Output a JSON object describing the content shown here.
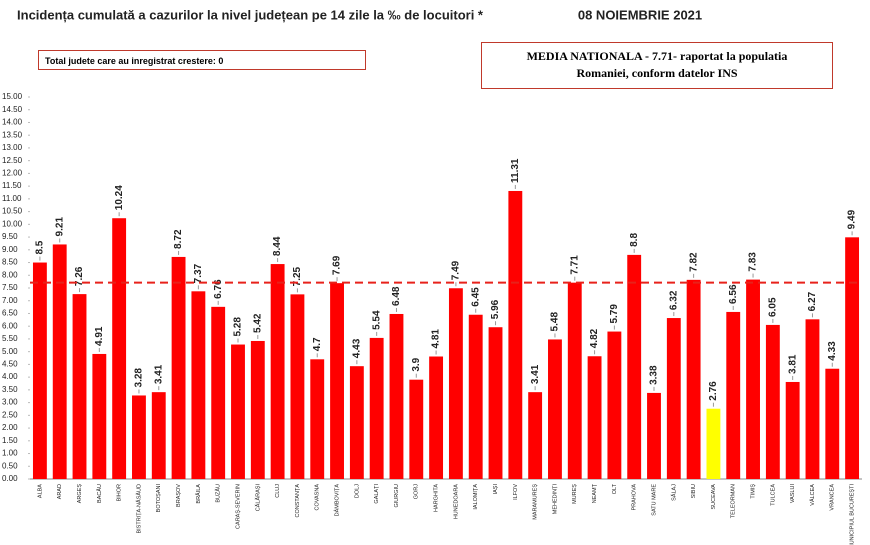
{
  "chart_data": {
    "type": "bar",
    "title": "Incidența cumulată a cazurilor la nivel județean pe 14 zile la ‰ de locuitori *",
    "date": "08 NOIEMBRIE 2021",
    "note_box": "Total judete care au inregistrat crestere: 0",
    "reference_box": "MEDIA NATIONALA - 7.71-  raportat la populatia Romaniei, conform datelor INS",
    "reference_line": 7.71,
    "reference_color": "#e8221b",
    "categories": [
      "ALBA",
      "ARAD",
      "ARGEȘ",
      "BACĂU",
      "BIHOR",
      "BISTRIȚA-NĂSĂUD",
      "BOTOȘANI",
      "BRAȘOV",
      "BRĂILA",
      "BUZĂU",
      "CARAȘ-SEVERIN",
      "CĂLĂRAȘI",
      "CLUJ",
      "CONSTANȚA",
      "COVASNA",
      "DÂMBOVIȚA",
      "DOLJ",
      "GALAȚI",
      "GIURGIU",
      "GORJ",
      "HARGHITA",
      "HUNEDOARA",
      "IALOMIȚA",
      "IAȘI",
      "ILFOV",
      "MARAMUREȘ",
      "MEHEDINȚI",
      "MUREȘ",
      "NEAMȚ",
      "OLT",
      "PRAHOVA",
      "SATU MARE",
      "SĂLAJ",
      "SIBIU",
      "SUCEAVA",
      "TELEORMAN",
      "TIMIȘ",
      "TULCEA",
      "VASLUI",
      "VÂLCEA",
      "VRANCEA",
      "MUNICIPIUL BUCUREȘTI"
    ],
    "values": [
      8.5,
      9.21,
      7.26,
      4.91,
      10.24,
      3.28,
      3.41,
      8.72,
      7.37,
      6.76,
      5.28,
      5.42,
      8.44,
      7.25,
      4.7,
      7.69,
      4.43,
      5.54,
      6.48,
      3.9,
      4.81,
      7.49,
      6.45,
      5.96,
      11.31,
      3.41,
      5.48,
      7.71,
      4.82,
      5.79,
      8.8,
      3.38,
      6.32,
      7.82,
      2.76,
      6.56,
      7.83,
      6.05,
      3.81,
      6.27,
      4.33,
      9.49
    ],
    "color": "#ff0000",
    "highlight": {
      "index": 34,
      "color": "#ffff00"
    },
    "ylim": [
      0,
      15
    ],
    "yticks": [
      {
        "value": 0,
        "label": "0.00"
      },
      {
        "value": 0.5,
        "label": "0.50"
      },
      {
        "value": 1,
        "label": "1.00"
      },
      {
        "value": 1.5,
        "label": "1.50"
      },
      {
        "value": 2,
        "label": "2.00"
      },
      {
        "value": 2.5,
        "label": "2.50"
      },
      {
        "value": 3,
        "label": "3.00"
      },
      {
        "value": 3.5,
        "label": "3.50"
      },
      {
        "value": 4,
        "label": "4.00"
      },
      {
        "value": 4.5,
        "label": "4.50"
      },
      {
        "value": 5,
        "label": "5.00"
      },
      {
        "value": 5.5,
        "label": "5.50"
      },
      {
        "value": 6,
        "label": "6.00"
      },
      {
        "value": 6.5,
        "label": "6.50"
      },
      {
        "value": 7,
        "label": "7.00"
      },
      {
        "value": 7.5,
        "label": "7.50"
      },
      {
        "value": 8,
        "label": "8.00"
      },
      {
        "value": 8.5,
        "label": "8.50"
      },
      {
        "value": 9,
        "label": "9.00"
      },
      {
        "value": 9.5,
        "label": "9.50"
      },
      {
        "value": 10,
        "label": "10.00"
      },
      {
        "value": 10.5,
        "label": "10.50"
      },
      {
        "value": 11,
        "label": "11.00"
      },
      {
        "value": 11.5,
        "label": "11.50"
      },
      {
        "value": 12,
        "label": "12.00"
      },
      {
        "value": 12.5,
        "label": "12.50"
      },
      {
        "value": 13,
        "label": "13.00"
      },
      {
        "value": 13.5,
        "label": "13.50"
      },
      {
        "value": 14,
        "label": "14.00"
      },
      {
        "value": 14.5,
        "label": "14.50"
      },
      {
        "value": 15,
        "label": "15.00"
      }
    ]
  }
}
